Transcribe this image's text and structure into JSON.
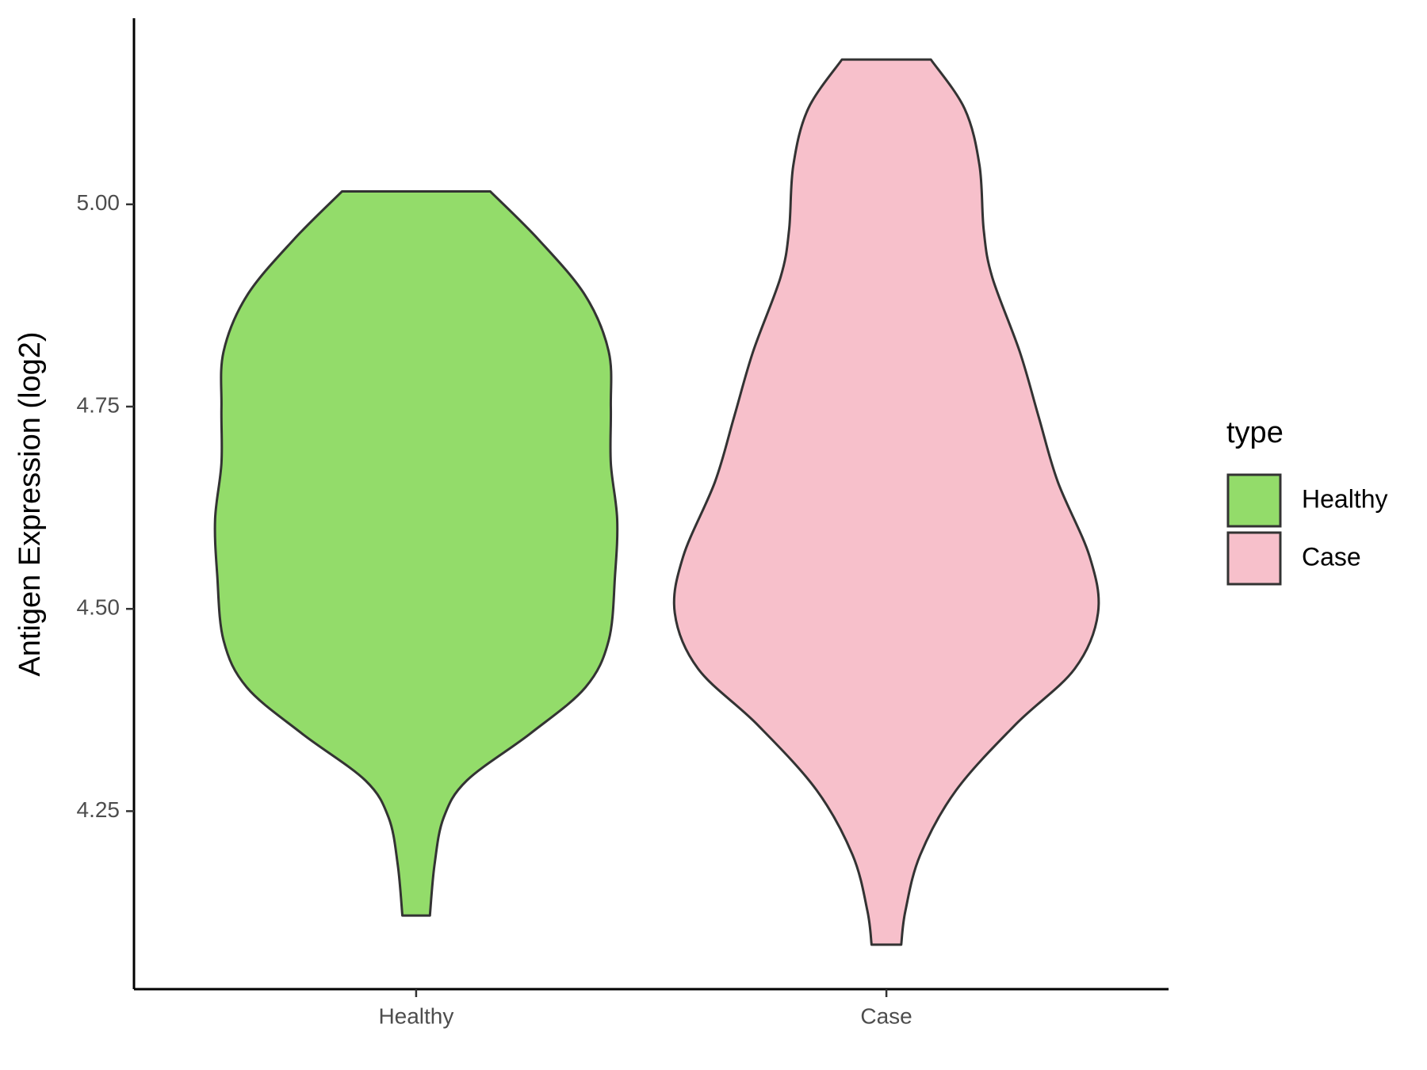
{
  "chart_data": {
    "type": "violin",
    "y_label": "Antigen Expression (log2)",
    "legend_title": "type",
    "legend_position": "right",
    "categories": [
      "Healthy",
      "Case"
    ],
    "ylim": [
      4.03,
      5.23
    ],
    "yticks": [
      4.25,
      {
        "value": 4.5,
        "label": "4.50"
      },
      4.75,
      {
        "value": 5,
        "label": "5.00"
      }
    ],
    "series": [
      {
        "name": "Healthy",
        "color": "#93dc6a",
        "y": [
          5.016,
          4.956,
          4.887,
          4.818,
          4.749,
          4.68,
          4.611,
          4.542,
          4.461,
          4.403,
          4.346,
          4.288,
          4.242,
          4.184,
          4.121
        ],
        "width": [
          0.35,
          0.58,
          0.8,
          0.91,
          0.92,
          0.92,
          0.95,
          0.94,
          0.91,
          0.8,
          0.54,
          0.24,
          0.13,
          0.087,
          0.065
        ]
      },
      {
        "name": "Case",
        "color": "#f7c0cb",
        "y": [
          5.179,
          5.118,
          5.048,
          4.968,
          4.91,
          4.818,
          4.737,
          4.657,
          4.565,
          4.495,
          4.426,
          4.357,
          4.276,
          4.196,
          4.127,
          4.085
        ],
        "width": [
          0.21,
          0.37,
          0.44,
          0.46,
          0.5,
          0.63,
          0.72,
          0.81,
          0.96,
          1.0,
          0.89,
          0.61,
          0.33,
          0.16,
          0.09,
          0.07
        ]
      }
    ]
  }
}
